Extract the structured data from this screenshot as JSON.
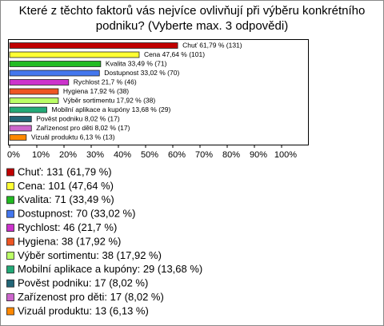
{
  "chart_data": {
    "type": "bar",
    "orientation": "horizontal",
    "title": [
      "Které z těchto faktorů vás nejvíce ovlivňují při výběru konkrétního",
      "podniku? (Vyberte max. 3 odpovědi)"
    ],
    "values": [
      61.79,
      47.64,
      33.49,
      33.02,
      21.7,
      17.92,
      17.92,
      13.68,
      8.02,
      8.02,
      6.13
    ],
    "value_labels": [
      "Chuť 61,79 % (131)",
      "Cena 47,64 % (101)",
      "Kvalita 33,49 % (71)",
      "Dostupnost 33,02 % (70)",
      "Rychlost 21,7 % (46)",
      "Hygiena 17,92 % (38)",
      "Výběr sortimentu 17,92 % (38)",
      "Mobilní aplikace a kupóny 13,68 % (29)",
      "Pověst podniku 8,02 % (17)",
      "Zařízenost pro děti 8,02 % (17)",
      "Vizuál produktu 6,13 % (13)"
    ],
    "legend": [
      "Chuť: 131 (61,79 %)",
      "Cena: 101 (47,64 %)",
      "Kvalita: 71 (33,49 %)",
      "Dostupnost: 70 (33,02 %)",
      "Rychlost: 46 (21,7 %)",
      "Hygiena: 38 (17,92 %)",
      "Výběr sortimentu: 38 (17,92 %)",
      "Mobilní aplikace a kupóny: 29 (13,68 %)",
      "Pověst podniku: 17 (8,02 %)",
      "Zařízenost pro děti: 17 (8,02 %)",
      "Vizuál produktu: 13 (6,13 %)"
    ],
    "colors": [
      "#c00000",
      "#ffff33",
      "#22bb22",
      "#4477ee",
      "#cc33cc",
      "#ee5522",
      "#bbff66",
      "#22aa77",
      "#226677",
      "#cc66cc",
      "#ff8800"
    ],
    "xlim": [
      0,
      110
    ],
    "xticks": [
      {
        "value": 0,
        "label": "0%"
      },
      {
        "value": 10,
        "label": "10%"
      },
      {
        "value": 20,
        "label": "20%"
      },
      {
        "value": 30,
        "label": "30%"
      },
      {
        "value": 40,
        "label": "40%"
      },
      {
        "value": 50,
        "label": "50%"
      },
      {
        "value": 60,
        "label": "60%"
      },
      {
        "value": 70,
        "label": "70%"
      },
      {
        "value": 80,
        "label": "80%"
      },
      {
        "value": 90,
        "label": "90%"
      },
      {
        "value": 100,
        "label": "100%"
      }
    ]
  }
}
